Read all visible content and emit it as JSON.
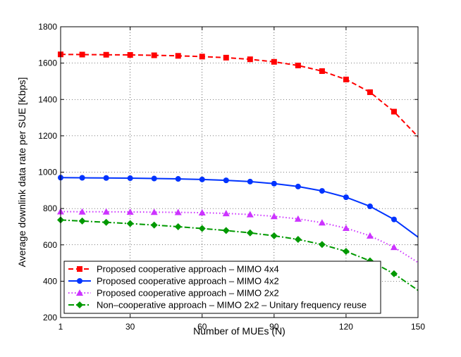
{
  "chart_data": {
    "type": "line",
    "title": "",
    "xlabel": "Number of MUEs (N)",
    "ylabel": "Average downlink data rate per SUE [Kbps]",
    "xlim": [
      1,
      150
    ],
    "ylim": [
      200,
      1800
    ],
    "xticks": [
      1,
      30,
      60,
      90,
      120,
      150
    ],
    "xtick_labels": [
      "1",
      "30",
      "60",
      "90",
      "120",
      "150"
    ],
    "yticks": [
      200,
      400,
      600,
      800,
      1000,
      1200,
      1400,
      1600,
      1800
    ],
    "ytick_labels": [
      "200",
      "400",
      "600",
      "800",
      "1000",
      "1200",
      "1400",
      "1600",
      "1800"
    ],
    "grid": true,
    "legend_position": "bottom-left",
    "x": [
      1,
      10,
      20,
      30,
      40,
      50,
      60,
      70,
      80,
      90,
      100,
      110,
      120,
      130,
      140,
      150
    ],
    "series": [
      {
        "name": "Proposed cooperative approach – MIMO 4x4",
        "color": "#ff0000",
        "line_style": "dashed",
        "marker": "square",
        "values": [
          1648,
          1647,
          1646,
          1645,
          1643,
          1640,
          1636,
          1630,
          1621,
          1607,
          1587,
          1556,
          1510,
          1440,
          1333,
          1195
        ]
      },
      {
        "name": "Proposed cooperative approach – MIMO 4x2",
        "color": "#0033ff",
        "line_style": "solid",
        "marker": "circle",
        "values": [
          970,
          969,
          968,
          967,
          965,
          963,
          960,
          955,
          948,
          937,
          921,
          897,
          862,
          812,
          740,
          643
        ]
      },
      {
        "name": "Proposed cooperative approach – MIMO 2x2",
        "color": "#cc33ff",
        "line_style": "dotted",
        "marker": "triangle",
        "values": [
          783,
          782,
          782,
          781,
          780,
          779,
          777,
          773,
          767,
          757,
          743,
          722,
          692,
          650,
          587,
          503
        ]
      },
      {
        "name": "Non–cooperative approach – MIMO 2x2 – Unitary frequency reuse",
        "color": "#009900",
        "line_style": "dashdot",
        "marker": "diamond",
        "values": [
          737,
          731,
          724,
          717,
          709,
          700,
          690,
          679,
          666,
          650,
          630,
          602,
          564,
          512,
          441,
          350
        ]
      }
    ]
  }
}
